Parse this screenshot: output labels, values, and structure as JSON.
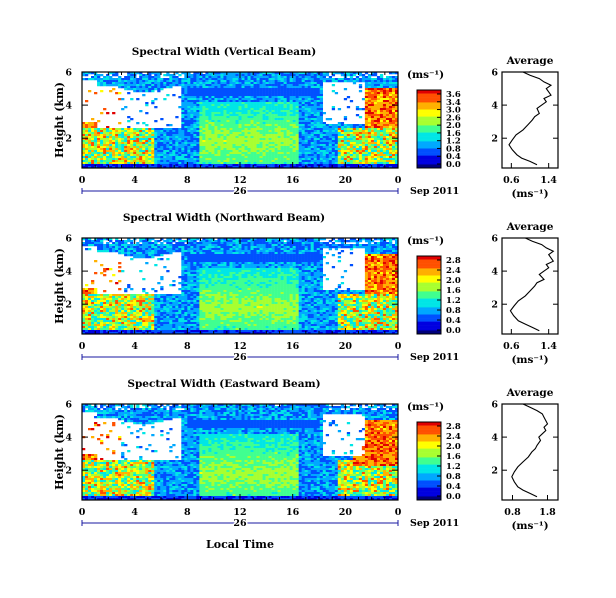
{
  "figure": {
    "xlabel": "Local Time",
    "colors": {
      "scale": [
        "#00007a",
        "#0000e0",
        "#0050ff",
        "#00a8ff",
        "#00e6e6",
        "#40ff90",
        "#a8ff30",
        "#ffff00",
        "#ffb000",
        "#ff5000",
        "#e00000"
      ]
    }
  },
  "chart_data": [
    {
      "type": "heatmap",
      "title": "Spectral Width (Vertical Beam)",
      "ylabel": "Height (km)",
      "xticks": [
        "0",
        "4",
        "8",
        "12",
        "16",
        "20",
        "0"
      ],
      "xday": "26",
      "date_label": "Sep 2011",
      "yticks": [
        "2",
        "4",
        "6"
      ],
      "ylim": [
        0.2,
        6.0
      ],
      "xlim": [
        0,
        24
      ],
      "colorbar": {
        "unit": "(ms⁻¹)",
        "ticks": [
          "3.6",
          "3.4",
          "3.0",
          "2.6",
          "2.0",
          "1.6",
          "1.2",
          "0.8",
          "0.4",
          "0.0"
        ],
        "range": [
          0.0,
          3.6
        ]
      }
    },
    {
      "type": "line",
      "title": "Average",
      "xticks": [
        "0.6",
        "1.4"
      ],
      "xlabel": "(ms⁻¹)",
      "yticks": [
        "2",
        "4",
        "6"
      ],
      "xlim": [
        0.4,
        1.6
      ],
      "ylim": [
        0.2,
        6.0
      ],
      "x": [
        1.15,
        1.0,
        0.82,
        0.72,
        0.62,
        0.55,
        0.62,
        0.7,
        0.85,
        0.95,
        1.05,
        1.1,
        1.2,
        1.15,
        1.25,
        1.35,
        1.3,
        1.45,
        1.4,
        1.35,
        1.45,
        1.3,
        1.2,
        1.0,
        0.85
      ],
      "y": [
        0.4,
        0.6,
        0.8,
        1.0,
        1.3,
        1.6,
        1.9,
        2.2,
        2.5,
        2.8,
        3.1,
        3.3,
        3.5,
        3.8,
        4.0,
        4.2,
        4.4,
        4.6,
        4.8,
        5.0,
        5.2,
        5.4,
        5.6,
        5.8,
        6.0
      ]
    },
    {
      "type": "heatmap",
      "title": "Spectral Width (Northward Beam)",
      "ylabel": "Height (km)",
      "xticks": [
        "0",
        "4",
        "8",
        "12",
        "16",
        "20",
        "0"
      ],
      "xday": "26",
      "date_label": "Sep 2011",
      "yticks": [
        "2",
        "4",
        "6"
      ],
      "ylim": [
        0.2,
        6.0
      ],
      "xlim": [
        0,
        24
      ],
      "colorbar": {
        "unit": "(ms⁻¹)",
        "ticks": [
          "2.8",
          "2.4",
          "2.0",
          "1.6",
          "1.2",
          "0.8",
          "0.4",
          "0.0"
        ],
        "range": [
          0.0,
          2.8
        ]
      }
    },
    {
      "type": "line",
      "title": "Average",
      "xticks": [
        "0.6",
        "1.4"
      ],
      "xlabel": "(ms⁻¹)",
      "yticks": [
        "2",
        "4",
        "6"
      ],
      "xlim": [
        0.4,
        1.6
      ],
      "ylim": [
        0.2,
        6.0
      ],
      "x": [
        1.2,
        1.05,
        0.9,
        0.75,
        0.65,
        0.58,
        0.66,
        0.75,
        0.9,
        1.0,
        1.1,
        1.15,
        1.3,
        1.2,
        1.3,
        1.4,
        1.35,
        1.5,
        1.45,
        1.4,
        1.5,
        1.35,
        1.25,
        1.05,
        0.9
      ],
      "y": [
        0.4,
        0.6,
        0.8,
        1.0,
        1.3,
        1.6,
        1.9,
        2.2,
        2.5,
        2.8,
        3.1,
        3.3,
        3.5,
        3.8,
        4.0,
        4.2,
        4.4,
        4.6,
        4.8,
        5.0,
        5.2,
        5.4,
        5.6,
        5.8,
        6.0
      ]
    },
    {
      "type": "heatmap",
      "title": "Spectral Width (Eastward Beam)",
      "ylabel": "Height (km)",
      "xticks": [
        "0",
        "4",
        "8",
        "12",
        "16",
        "20",
        "0"
      ],
      "xday": "26",
      "date_label": "Sep 2011",
      "yticks": [
        "2",
        "4",
        "6"
      ],
      "ylim": [
        0.2,
        6.0
      ],
      "xlim": [
        0,
        24
      ],
      "colorbar": {
        "unit": "(ms⁻¹)",
        "ticks": [
          "2.8",
          "2.4",
          "2.0",
          "1.6",
          "1.2",
          "0.8",
          "0.4",
          "0.0"
        ],
        "range": [
          0.0,
          2.8
        ]
      }
    },
    {
      "type": "line",
      "title": "Average",
      "xticks": [
        "0.8",
        "1.8"
      ],
      "xlabel": "(ms⁻¹)",
      "yticks": [
        "2",
        "4",
        "6"
      ],
      "xlim": [
        0.5,
        2.1
      ],
      "ylim": [
        0.2,
        6.0
      ],
      "x": [
        1.5,
        1.3,
        1.1,
        0.95,
        0.85,
        0.78,
        0.85,
        0.95,
        1.1,
        1.25,
        1.35,
        1.45,
        1.5,
        1.6,
        1.55,
        1.65,
        1.75,
        1.7,
        1.8,
        1.75,
        1.7,
        1.65,
        1.5,
        1.3,
        1.1
      ],
      "y": [
        0.4,
        0.6,
        0.8,
        1.0,
        1.3,
        1.6,
        1.9,
        2.2,
        2.5,
        2.8,
        3.1,
        3.3,
        3.5,
        3.8,
        4.0,
        4.2,
        4.4,
        4.6,
        4.8,
        5.0,
        5.2,
        5.4,
        5.6,
        5.8,
        6.0
      ]
    }
  ]
}
